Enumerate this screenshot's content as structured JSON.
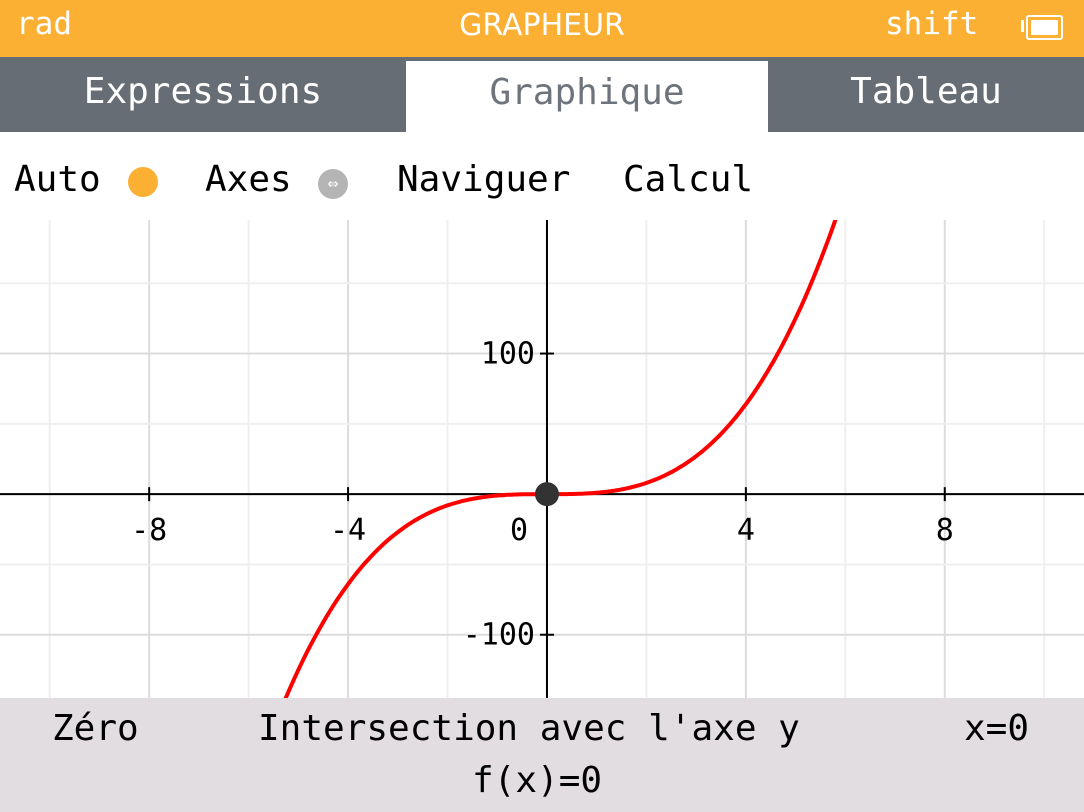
{
  "status": {
    "angle_mode": "rad",
    "title": "GRAPHEUR",
    "modifier": "shift",
    "battery_icon": "battery-icon"
  },
  "tabs": [
    {
      "label": "Expressions",
      "active": false
    },
    {
      "label": "Graphique",
      "active": true
    },
    {
      "label": "Tableau",
      "active": false
    }
  ],
  "toolbar": {
    "auto_label": "Auto",
    "axes_label": "Axes",
    "navigate_label": "Naviguer",
    "calc_label": "Calcul"
  },
  "colors": {
    "accent": "#fbb034",
    "curve": "#ff0000",
    "tab_bar": "#676d75",
    "banner": "#e1dde0"
  },
  "chart_data": {
    "type": "line",
    "function": "f(x)=x^3",
    "xlim": [
      -11,
      10.8
    ],
    "ylim": [
      -145,
      195
    ],
    "x_ticks": [
      -8,
      -4,
      0,
      4,
      8
    ],
    "x_tick_labels": [
      "-8",
      "-4",
      "0",
      "4",
      "8"
    ],
    "y_ticks": [
      100,
      -100
    ],
    "y_tick_labels": [
      "100",
      "-100"
    ],
    "grid": true,
    "series": [
      {
        "color": "#ff0000"
      }
    ],
    "point": {
      "x": 0,
      "y": 0
    }
  },
  "banner": {
    "function_name": "Zéro",
    "calc_name": "Intersection avec l'axe y",
    "x_value": "x=0",
    "y_value": "f(x)=0"
  }
}
